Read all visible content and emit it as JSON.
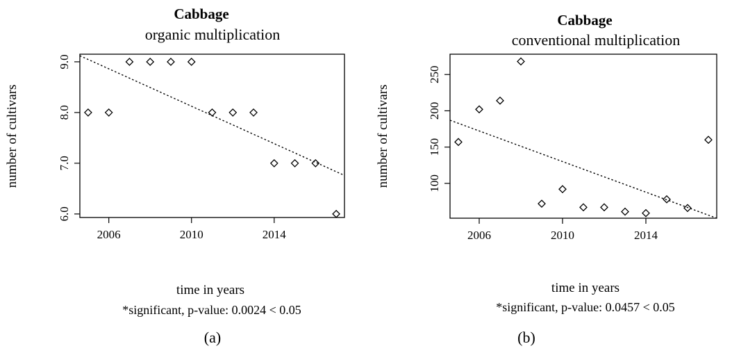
{
  "chart_data": [
    {
      "type": "scatter",
      "panel_label": "(a)",
      "title": "Cabbage",
      "subtitle": "organic multiplication",
      "xlabel": "time in years",
      "ylabel": "number of cultivars",
      "note": "*significant, p-value:  0.0024  < 0.05",
      "xlim": [
        2004.6,
        2017.4
      ],
      "ylim": [
        5.93,
        9.15
      ],
      "xticks": [
        2006,
        2010,
        2014
      ],
      "yticks": [
        6.0,
        7.0,
        8.0,
        9.0
      ],
      "ytick_labels": [
        "6.0",
        "7.0",
        "8.0",
        "9.0"
      ],
      "grid": false,
      "legend": "none",
      "points": {
        "x": [
          2005,
          2006,
          2007,
          2008,
          2009,
          2010,
          2011,
          2012,
          2013,
          2014,
          2015,
          2016,
          2017
        ],
        "y": [
          8,
          8,
          9,
          9,
          9,
          9,
          8,
          8,
          8,
          7,
          7,
          7,
          6
        ]
      },
      "trend_line": {
        "x": [
          2004.6,
          2017.4
        ],
        "y": [
          9.12,
          6.76
        ]
      }
    },
    {
      "type": "scatter",
      "panel_label": "(b)",
      "title": "Cabbage",
      "subtitle": "conventional multiplication",
      "xlabel": "time in years",
      "ylabel": "number of cultivars",
      "note": "*significant, p-value:  0.0457  < 0.05",
      "xlim": [
        2004.6,
        2017.4
      ],
      "ylim": [
        52,
        278
      ],
      "xticks": [
        2006,
        2010,
        2014
      ],
      "yticks": [
        100,
        150,
        200,
        250
      ],
      "ytick_labels": [
        "100",
        "150",
        "200",
        "250"
      ],
      "grid": false,
      "legend": "none",
      "points": {
        "x": [
          2005,
          2006,
          2007,
          2008,
          2009,
          2010,
          2011,
          2012,
          2013,
          2014,
          2015,
          2016,
          2017
        ],
        "y": [
          157,
          202,
          214,
          268,
          72,
          92,
          67,
          67,
          61,
          59,
          78,
          66,
          160
        ]
      },
      "trend_line": {
        "x": [
          2004.6,
          2017.4
        ],
        "y": [
          187,
          52
        ]
      }
    }
  ]
}
